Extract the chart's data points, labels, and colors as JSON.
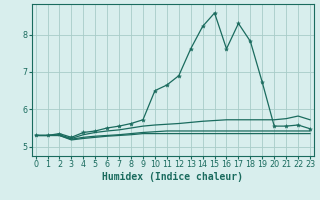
{
  "title": "",
  "xlabel": "Humidex (Indice chaleur)",
  "bg_color": "#d8eeed",
  "line_color": "#1a6b5e",
  "grid_color": "#a8ccc8",
  "series": [
    {
      "x": [
        0,
        1,
        2,
        3,
        4,
        5,
        6,
        7,
        8,
        9,
        10,
        11,
        12,
        13,
        14,
        15,
        16,
        17,
        18,
        19,
        20,
        21,
        22,
        23
      ],
      "y": [
        5.3,
        5.3,
        5.35,
        5.25,
        5.38,
        5.42,
        5.5,
        5.55,
        5.62,
        5.72,
        6.5,
        6.65,
        6.9,
        7.62,
        8.22,
        8.58,
        7.62,
        8.3,
        7.82,
        6.72,
        5.55,
        5.55,
        5.58,
        5.48
      ],
      "marker": true,
      "lw": 0.9
    },
    {
      "x": [
        0,
        1,
        2,
        3,
        4,
        5,
        6,
        7,
        8,
        9,
        10,
        11,
        12,
        13,
        14,
        15,
        16,
        17,
        18,
        19,
        20,
        21,
        22,
        23
      ],
      "y": [
        5.3,
        5.3,
        5.32,
        5.22,
        5.32,
        5.38,
        5.42,
        5.45,
        5.5,
        5.55,
        5.58,
        5.6,
        5.62,
        5.65,
        5.68,
        5.7,
        5.72,
        5.72,
        5.72,
        5.72,
        5.72,
        5.75,
        5.82,
        5.72
      ],
      "marker": false,
      "lw": 0.9
    },
    {
      "x": [
        0,
        1,
        2,
        3,
        4,
        5,
        6,
        7,
        8,
        9,
        10,
        11,
        12,
        13,
        14,
        15,
        16,
        17,
        18,
        19,
        20,
        21,
        22,
        23
      ],
      "y": [
        5.3,
        5.3,
        5.3,
        5.2,
        5.25,
        5.28,
        5.3,
        5.32,
        5.35,
        5.38,
        5.4,
        5.42,
        5.42,
        5.42,
        5.42,
        5.42,
        5.42,
        5.42,
        5.42,
        5.42,
        5.42,
        5.42,
        5.42,
        5.42
      ],
      "marker": false,
      "lw": 0.9
    },
    {
      "x": [
        0,
        1,
        2,
        3,
        4,
        5,
        6,
        7,
        8,
        9,
        10,
        11,
        12,
        13,
        14,
        15,
        16,
        17,
        18,
        19,
        20,
        21,
        22,
        23
      ],
      "y": [
        5.3,
        5.3,
        5.3,
        5.18,
        5.22,
        5.25,
        5.28,
        5.3,
        5.32,
        5.35,
        5.35,
        5.35,
        5.35,
        5.35,
        5.35,
        5.35,
        5.35,
        5.35,
        5.35,
        5.35,
        5.35,
        5.35,
        5.35,
        5.35
      ],
      "marker": false,
      "lw": 0.9
    }
  ],
  "xlim": [
    -0.3,
    23.3
  ],
  "ylim": [
    4.75,
    8.82
  ],
  "yticks": [
    5,
    6,
    7,
    8
  ],
  "xticks": [
    0,
    1,
    2,
    3,
    4,
    5,
    6,
    7,
    8,
    9,
    10,
    11,
    12,
    13,
    14,
    15,
    16,
    17,
    18,
    19,
    20,
    21,
    22,
    23
  ],
  "tick_fontsize": 5.8,
  "label_fontsize": 7.0,
  "markersize": 2.5
}
